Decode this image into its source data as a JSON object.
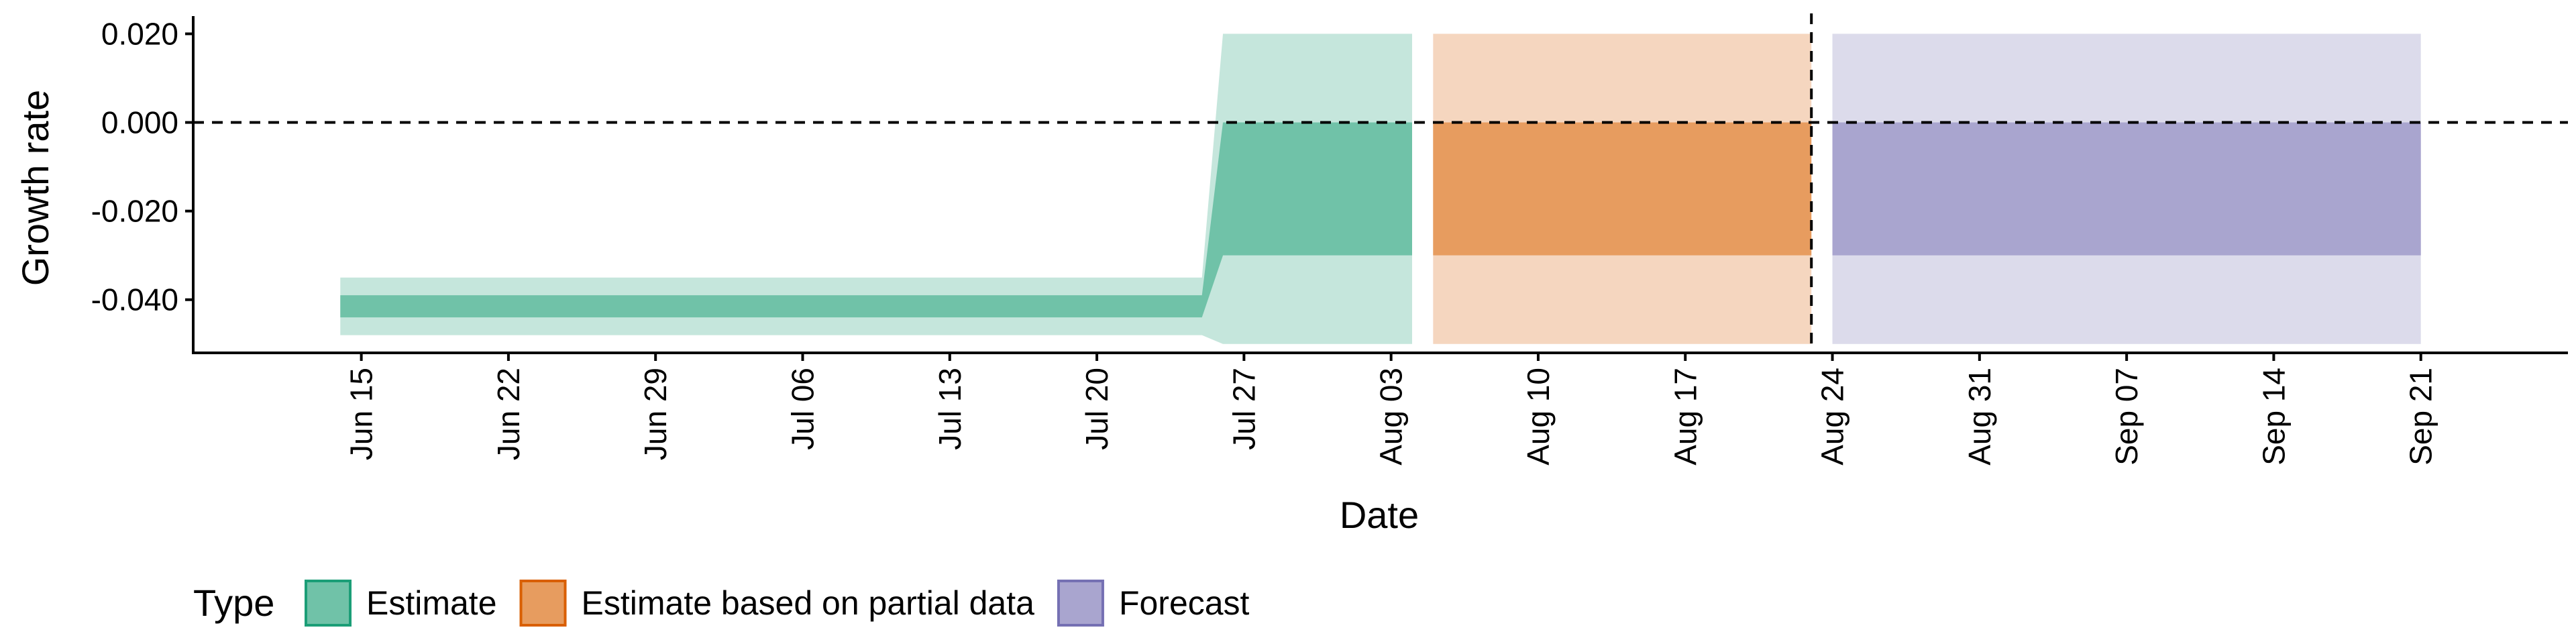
{
  "chart_data": {
    "type": "area",
    "xlabel": "Date",
    "ylabel": "Growth rate",
    "ylim": [
      -0.052,
      0.024
    ],
    "yticks": [
      0.02,
      0.0,
      -0.02,
      -0.04
    ],
    "ytick_labels": [
      "0.020",
      "0.000",
      "-0.020",
      "-0.040"
    ],
    "xlim": [
      "2020-06-07",
      "2020-09-28"
    ],
    "xticks": [
      "2020-06-15",
      "2020-06-22",
      "2020-06-29",
      "2020-07-06",
      "2020-07-13",
      "2020-07-20",
      "2020-07-27",
      "2020-08-03",
      "2020-08-10",
      "2020-08-17",
      "2020-08-24",
      "2020-08-31",
      "2020-09-07",
      "2020-09-14",
      "2020-09-21"
    ],
    "xtick_labels": [
      "Jun 15",
      "Jun 22",
      "Jun 29",
      "Jul 06",
      "Jul 13",
      "Jul 20",
      "Jul 27",
      "Aug 03",
      "Aug 10",
      "Aug 17",
      "Aug 24",
      "Aug 31",
      "Sep 07",
      "Sep 14",
      "Sep 21"
    ],
    "reference_lines": {
      "horizontal_y": 0.0,
      "vertical_date": "2020-08-23"
    },
    "legend": {
      "title": "Type",
      "position": "bottom-left",
      "entries": [
        {
          "label": "Estimate",
          "fill": "#70c2a8",
          "border": "#1b9e77"
        },
        {
          "label": "Estimate based on partial data",
          "fill": "#e79c5f",
          "border": "#d95f02"
        },
        {
          "label": "Forecast",
          "fill": "#a9a5cf",
          "border": "#7570b3"
        }
      ]
    },
    "series": [
      {
        "name": "Estimate",
        "inner_color": "#70c2a8",
        "outer_color": "#c5e6dc",
        "x": [
          "2020-06-14",
          "2020-07-25",
          "2020-07-26",
          "2020-08-04"
        ],
        "outer_upper": [
          -0.035,
          -0.035,
          0.02,
          0.02
        ],
        "inner_upper": [
          -0.039,
          -0.039,
          0.0,
          0.0
        ],
        "inner_lower": [
          -0.044,
          -0.044,
          -0.03,
          -0.03
        ],
        "outer_lower": [
          -0.048,
          -0.048,
          -0.05,
          -0.05
        ]
      },
      {
        "name": "Estimate based on partial data",
        "inner_color": "#e79c5f",
        "outer_color": "#f5d6bf",
        "x": [
          "2020-08-05",
          "2020-08-23"
        ],
        "outer_upper": [
          0.02,
          0.02
        ],
        "inner_upper": [
          0.0,
          0.0
        ],
        "inner_lower": [
          -0.03,
          -0.03
        ],
        "outer_lower": [
          -0.05,
          -0.05
        ]
      },
      {
        "name": "Forecast",
        "inner_color": "#a9a5cf",
        "outer_color": "#dcdbeb",
        "x": [
          "2020-08-24",
          "2020-09-21"
        ],
        "outer_upper": [
          0.02,
          0.02
        ],
        "inner_upper": [
          0.0,
          0.0
        ],
        "inner_lower": [
          -0.03,
          -0.03
        ],
        "outer_lower": [
          -0.05,
          -0.05
        ]
      }
    ]
  }
}
